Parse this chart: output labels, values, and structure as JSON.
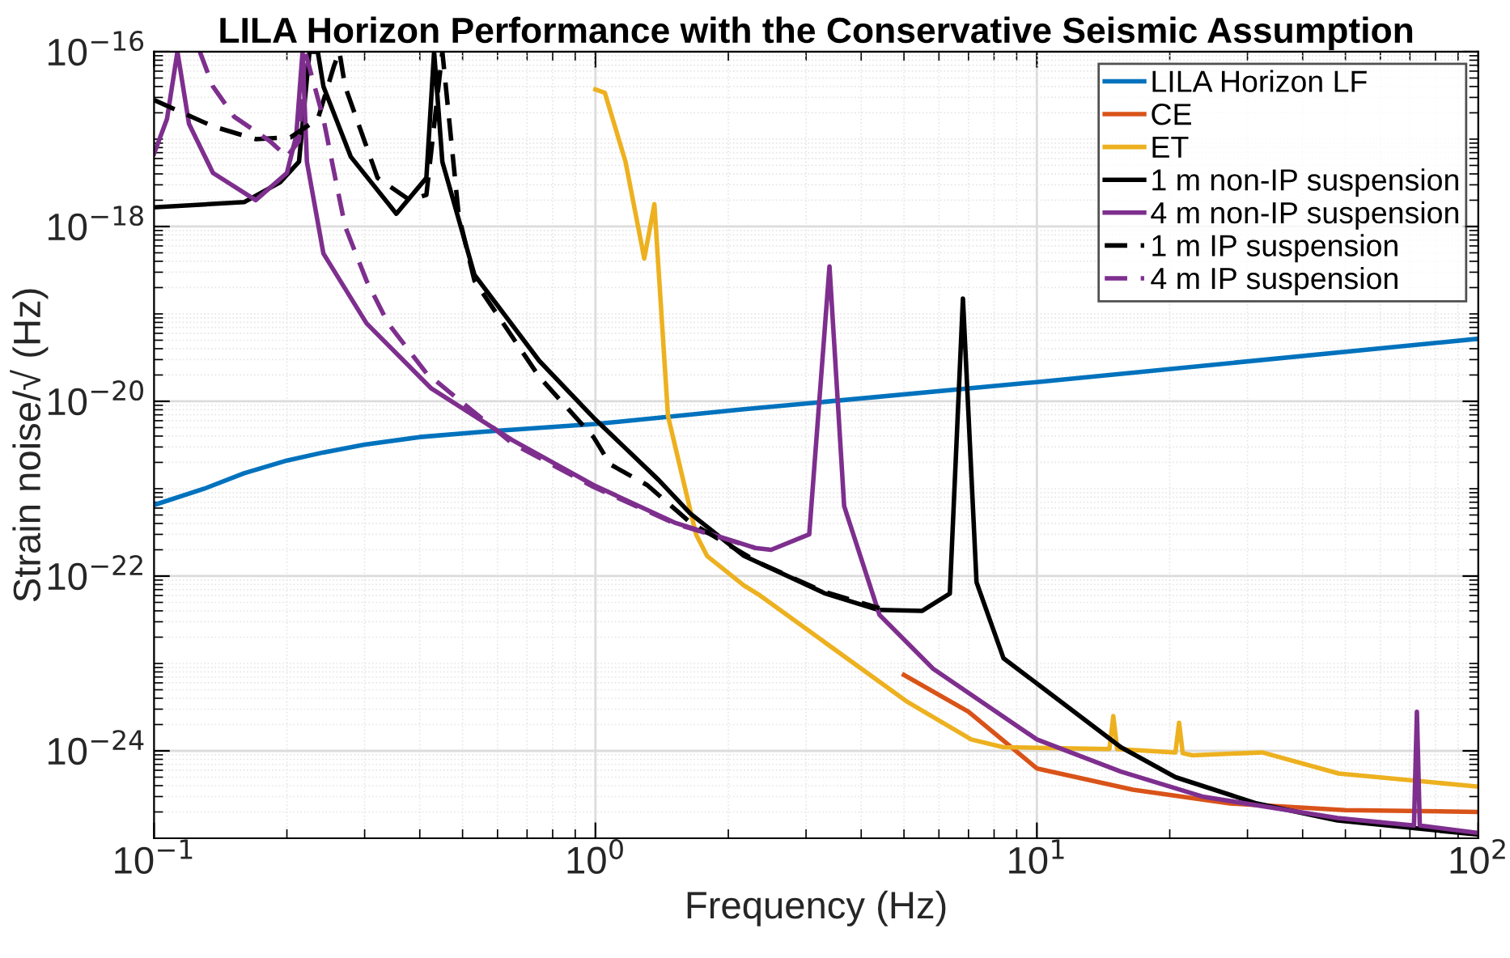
{
  "chart_data": {
    "type": "line",
    "title": "LILA Horizon Performance with the Conservative Seismic Assumption",
    "xlabel": "Frequency (Hz)",
    "ylabel": "Strain noise/√ (Hz)",
    "log": "xy",
    "xlim": [
      0.1,
      100
    ],
    "ylim": [
      1e-25,
      1e-16
    ],
    "xticks": [
      {
        "value": 0.1,
        "label": "10$^{−1}$"
      },
      {
        "value": 1,
        "label": "10$^{0}$"
      },
      {
        "value": 10,
        "label": "10$^{1}$"
      },
      {
        "value": 100,
        "label": "10$^{2}$"
      }
    ],
    "yticks": [
      {
        "value": 1e-24,
        "label": "10$^{−24}$"
      },
      {
        "value": 1e-22,
        "label": "10$^{−22}$"
      },
      {
        "value": 1e-20,
        "label": "10$^{−20}$"
      },
      {
        "value": 1e-18,
        "label": "10$^{−18}$"
      },
      {
        "value": 1e-16,
        "label": "10$^{−16}$"
      }
    ],
    "grid": true,
    "legend": "top right",
    "marker": "none",
    "series": [
      {
        "name": "LILA Horizon LF",
        "color": "#0072bd",
        "line_style": "solid",
        "x": [
          0.1,
          0.13,
          0.16,
          0.2,
          0.242,
          0.3,
          0.4,
          0.56,
          1,
          2.17,
          10,
          100
        ],
        "values": [
          6.5e-22,
          1e-21,
          1.5e-21,
          2.1e-21,
          2.6e-21,
          3.2e-21,
          3.9e-21,
          4.5e-21,
          5.5e-21,
          8.1e-21,
          1.66e-20,
          5.2e-20
        ]
      },
      {
        "name": "CE",
        "color": "#d95319",
        "line_style": "solid",
        "x": [
          5,
          7,
          10,
          16.5,
          27.4,
          50,
          100
        ],
        "values": [
          7.4e-24,
          2.8e-24,
          6.3e-25,
          3.6e-25,
          2.5e-25,
          2.1e-25,
          2e-25
        ]
      },
      {
        "name": "ET",
        "color": "#edb120",
        "line_style": "solid",
        "x": [
          1,
          1.05,
          1.17,
          1.29,
          1.36,
          1.46,
          1.59,
          1.69,
          1.79,
          2.17,
          2.36,
          5.06,
          7.1,
          8.4,
          14.6,
          14.9,
          15.2,
          20.6,
          21,
          21.4,
          22.5,
          32.4,
          48.3,
          100
        ],
        "values": [
          3.7e-17,
          3.4e-17,
          5.5e-18,
          4.3e-19,
          1.8e-18,
          6.8e-21,
          1.1e-21,
          3e-22,
          1.7e-22,
          7.8e-23,
          6e-23,
          3.7e-24,
          1.35e-24,
          1.1e-24,
          1.05e-24,
          2.5e-24,
          1.05e-24,
          9.6e-25,
          2.1e-24,
          9.4e-25,
          8.9e-25,
          9.6e-25,
          5.5e-25,
          3.9e-25
        ]
      },
      {
        "name": "1 m non-IP suspension",
        "color": "#000000",
        "line_style": "solid",
        "x": [
          0.1,
          0.16,
          0.193,
          0.213,
          0.225,
          0.235,
          0.242,
          0.279,
          0.354,
          0.414,
          0.431,
          0.45,
          0.532,
          0.746,
          0.99,
          1.39,
          1.64,
          2.17,
          3.32,
          4.38,
          5.5,
          6.35,
          6.8,
          7.3,
          8.4,
          10.5,
          15.5,
          20.6,
          31.5,
          48,
          100
        ],
        "values": [
          1.66e-18,
          1.9e-18,
          3.2e-18,
          5.5e-18,
          1e-16,
          1e-16,
          4e-17,
          6.3e-18,
          1.4e-18,
          3.6e-18,
          1e-16,
          5.5e-18,
          2.8e-19,
          2.9e-20,
          6.5e-21,
          1.26e-21,
          5.2e-22,
          1.7e-22,
          6.3e-23,
          4.1e-23,
          4e-23,
          6.3e-23,
          1.5e-19,
          8.5e-23,
          1.15e-23,
          4.9e-24,
          1.1e-24,
          5e-25,
          2.5e-25,
          1.6e-25,
          1.1e-25
        ]
      },
      {
        "name": "4 m non-IP suspension",
        "color": "#7e2f8e",
        "line_style": "solid",
        "x": [
          0.1,
          0.107,
          0.113,
          0.12,
          0.136,
          0.17,
          0.2,
          0.21,
          0.217,
          0.222,
          0.242,
          0.303,
          0.425,
          0.648,
          0.99,
          1.51,
          2.3,
          2.5,
          3.05,
          3.39,
          3.66,
          4.4,
          5.82,
          10,
          15.5,
          23.7,
          48,
          71.5,
          72.6,
          73.7,
          100
        ],
        "values": [
          6.8e-18,
          1.7e-17,
          1e-16,
          1.5e-17,
          4.1e-18,
          2e-18,
          4.1e-18,
          1.1e-17,
          1e-16,
          5.5e-18,
          4.9e-19,
          7.8e-20,
          1.4e-20,
          3.6e-21,
          1.1e-21,
          4.1e-22,
          2.1e-22,
          2e-22,
          3e-22,
          3.5e-19,
          6.3e-22,
          3.6e-23,
          8.7e-24,
          1.35e-24,
          5.8e-25,
          3e-25,
          1.7e-25,
          1.4e-25,
          2.8e-24,
          1.4e-25,
          1.15e-25
        ]
      },
      {
        "name": "1 m IP suspension",
        "color": "#000000",
        "line_style": "dashed",
        "x": [
          0.1,
          0.136,
          0.17,
          0.204,
          0.235,
          0.256,
          0.263,
          0.271,
          0.321,
          0.38,
          0.414,
          0.45,
          0.49,
          0.532,
          0.746,
          0.99,
          1.08,
          1.31,
          1.64,
          2.36,
          3.3,
          4.4
        ],
        "values": [
          2.8e-17,
          1.4e-17,
          1e-17,
          1.05e-17,
          1.7e-17,
          7e-17,
          1e-16,
          4e-17,
          3.6e-18,
          2e-18,
          2.3e-18,
          1e-16,
          1.35e-18,
          2.4e-19,
          1.9e-20,
          3.9e-21,
          1.9e-21,
          1.1e-21,
          4.1e-22,
          1.4e-22,
          6.6e-23,
          4.3e-23
        ]
      },
      {
        "name": "4 m IP suspension",
        "color": "#7e2f8e",
        "line_style": "dashed",
        "x": [
          0.127,
          0.136,
          0.152,
          0.183,
          0.2,
          0.213,
          0.22,
          0.242,
          0.256,
          0.271,
          0.303,
          0.339,
          0.414,
          0.648,
          0.99,
          1.51,
          2.3
        ],
        "values": [
          1e-16,
          4e-17,
          1.8e-17,
          9.5e-18,
          6.3e-18,
          9.5e-18,
          1e-16,
          1.7e-17,
          4.1e-18,
          1e-18,
          2.4e-19,
          7.8e-20,
          2.1e-20,
          3.3e-21,
          1.05e-21,
          4e-22,
          2.1e-22
        ]
      }
    ]
  }
}
